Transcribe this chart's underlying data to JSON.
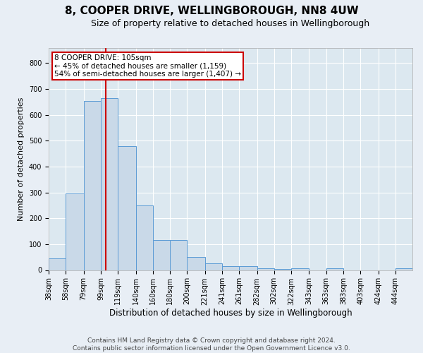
{
  "title": "8, COOPER DRIVE, WELLINGBOROUGH, NN8 4UW",
  "subtitle": "Size of property relative to detached houses in Wellingborough",
  "xlabel": "Distribution of detached houses by size in Wellingborough",
  "ylabel": "Number of detached properties",
  "bin_labels": [
    "38sqm",
    "58sqm",
    "79sqm",
    "99sqm",
    "119sqm",
    "140sqm",
    "160sqm",
    "180sqm",
    "200sqm",
    "221sqm",
    "241sqm",
    "261sqm",
    "282sqm",
    "302sqm",
    "322sqm",
    "343sqm",
    "363sqm",
    "383sqm",
    "403sqm",
    "424sqm",
    "444sqm"
  ],
  "bin_edges": [
    38,
    58,
    79,
    99,
    119,
    140,
    160,
    180,
    200,
    221,
    241,
    261,
    282,
    302,
    322,
    343,
    363,
    383,
    403,
    424,
    444,
    464
  ],
  "bar_heights": [
    45,
    295,
    655,
    665,
    480,
    250,
    115,
    115,
    50,
    27,
    15,
    15,
    8,
    3,
    7,
    0,
    8,
    0,
    0,
    0,
    8
  ],
  "bar_color": "#c9d9e8",
  "bar_edge_color": "#5b9bd5",
  "vline_x": 105,
  "vline_color": "#cc0000",
  "ylim": [
    0,
    860
  ],
  "yticks": [
    0,
    100,
    200,
    300,
    400,
    500,
    600,
    700,
    800
  ],
  "annotation_text": "8 COOPER DRIVE: 105sqm\n← 45% of detached houses are smaller (1,159)\n54% of semi-detached houses are larger (1,407) →",
  "annotation_box_color": "#cc0000",
  "footer_line1": "Contains HM Land Registry data © Crown copyright and database right 2024.",
  "footer_line2": "Contains public sector information licensed under the Open Government Licence v3.0.",
  "fig_bg_color": "#e8eef5",
  "plot_bg_color": "#dce8f0",
  "grid_color": "#ffffff",
  "title_fontsize": 11,
  "subtitle_fontsize": 9,
  "footer_fontsize": 6.5,
  "annotation_fontsize": 7.5,
  "ylabel_fontsize": 8,
  "xlabel_fontsize": 8.5,
  "tick_fontsize": 7
}
